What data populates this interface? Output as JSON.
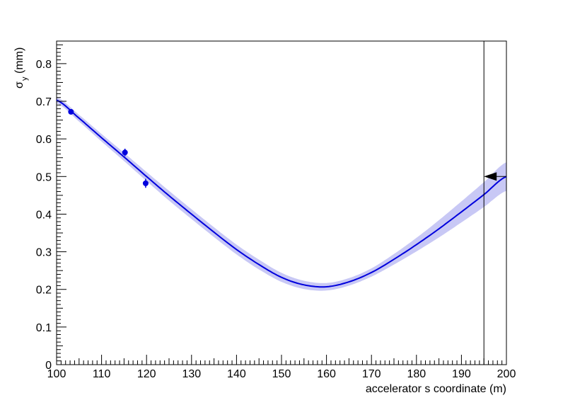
{
  "chart_data": {
    "type": "line",
    "title": "",
    "xlabel": "accelerator s coordinate (m)",
    "ylabel": "σ",
    "ylabel_subscript": "y",
    "ylabel_unit": "(mm)",
    "xlim": [
      100,
      200
    ],
    "ylim": [
      0,
      0.86
    ],
    "x_ticks": [
      100,
      110,
      120,
      130,
      140,
      150,
      160,
      170,
      180,
      190,
      200
    ],
    "x_tick_labels": [
      "100",
      "110",
      "120",
      "130",
      "140",
      "150",
      "160",
      "170",
      "180",
      "190",
      "200"
    ],
    "y_ticks": [
      0,
      0.1,
      0.2,
      0.3,
      0.4,
      0.5,
      0.6,
      0.7,
      0.8
    ],
    "y_tick_labels": [
      "0",
      "0.1",
      "0.2",
      "0.3",
      "0.4",
      "0.5",
      "0.6",
      "0.7",
      "0.8"
    ],
    "grid": false,
    "legend": "none",
    "colors": {
      "fit": "#0000dd",
      "band": "#c8c8f5",
      "points": "#0000dd",
      "marker": "#000000"
    },
    "fit_curve": {
      "x": [
        100,
        105,
        110,
        115,
        120,
        125,
        130,
        135,
        140,
        145,
        150,
        155,
        160,
        165,
        170,
        175,
        180,
        185,
        190,
        195,
        200
      ],
      "y": [
        0.703,
        0.655,
        0.603,
        0.552,
        0.5,
        0.449,
        0.4,
        0.352,
        0.306,
        0.266,
        0.232,
        0.212,
        0.207,
        0.22,
        0.245,
        0.28,
        0.319,
        0.361,
        0.406,
        0.452,
        0.5
      ],
      "band": [
        0.008,
        0.009,
        0.01,
        0.011,
        0.012,
        0.013,
        0.013,
        0.013,
        0.013,
        0.013,
        0.012,
        0.011,
        0.01,
        0.01,
        0.011,
        0.014,
        0.018,
        0.023,
        0.028,
        0.033,
        0.038
      ]
    },
    "points": [
      {
        "x": 103.2,
        "y": 0.672,
        "err": 0.007
      },
      {
        "x": 115.2,
        "y": 0.564,
        "err": 0.01
      },
      {
        "x": 119.8,
        "y": 0.482,
        "err": 0.012
      }
    ],
    "marker": {
      "type": "vertical-line-with-arrow",
      "x": 195,
      "arrow_y": 0.5,
      "arrow_x_from": 200,
      "arrow_x_to": 195
    }
  }
}
